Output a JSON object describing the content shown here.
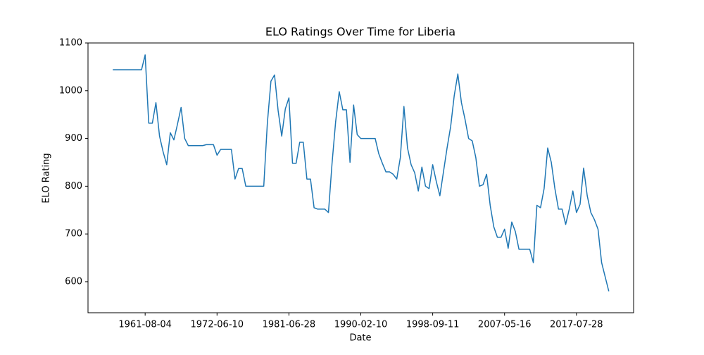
{
  "chart_data": {
    "type": "line",
    "title": "ELO Ratings Over Time for Liberia",
    "x_label": "Date",
    "y_label": "ELO Rating",
    "color": "#1f77b4",
    "categories": [
      null,
      null,
      null,
      null,
      null,
      null,
      null,
      null,
      null,
      "1961-08-04",
      null,
      null,
      null,
      null,
      null,
      null,
      null,
      null,
      null,
      null,
      null,
      null,
      null,
      null,
      null,
      null,
      null,
      null,
      null,
      "1972-06-10",
      null,
      null,
      null,
      null,
      null,
      null,
      null,
      null,
      null,
      null,
      null,
      null,
      null,
      null,
      null,
      null,
      null,
      null,
      null,
      "1981-06-28",
      null,
      null,
      null,
      null,
      null,
      null,
      null,
      null,
      null,
      null,
      null,
      null,
      null,
      null,
      null,
      null,
      null,
      null,
      null,
      "1990-02-10",
      null,
      null,
      null,
      null,
      null,
      null,
      null,
      null,
      null,
      null,
      null,
      null,
      null,
      null,
      null,
      null,
      null,
      null,
      null,
      "1998-09-11",
      null,
      null,
      null,
      null,
      null,
      null,
      null,
      null,
      null,
      null,
      null,
      null,
      null,
      null,
      null,
      null,
      null,
      null,
      null,
      "2007-05-16",
      null,
      null,
      null,
      null,
      null,
      null,
      null,
      null,
      null,
      null,
      null,
      null,
      null,
      null,
      null,
      null,
      null,
      null,
      null,
      "2017-07-28",
      null,
      null,
      null,
      null,
      null,
      null,
      null,
      null,
      null
    ],
    "values": [
      1044,
      1044,
      1044,
      1044,
      1044,
      1044,
      1044,
      1044,
      1044,
      1075,
      932,
      932,
      975,
      905,
      872,
      845,
      912,
      897,
      930,
      965,
      900,
      885,
      885,
      885,
      885,
      885,
      887,
      887,
      887,
      865,
      877,
      877,
      877,
      877,
      815,
      837,
      837,
      800,
      800,
      800,
      800,
      800,
      800,
      932,
      1020,
      1033,
      958,
      905,
      962,
      985,
      848,
      848,
      892,
      892,
      815,
      815,
      755,
      752,
      752,
      752,
      745,
      848,
      935,
      998,
      960,
      960,
      850,
      970,
      908,
      900,
      900,
      900,
      900,
      900,
      868,
      848,
      830,
      830,
      825,
      815,
      860,
      967,
      880,
      845,
      828,
      790,
      840,
      800,
      795,
      845,
      810,
      780,
      830,
      880,
      925,
      990,
      1035,
      975,
      940,
      900,
      895,
      860,
      800,
      803,
      825,
      760,
      715,
      693,
      693,
      710,
      670,
      725,
      705,
      668,
      668,
      668,
      668,
      640,
      760,
      755,
      795,
      880,
      850,
      795,
      752,
      752,
      720,
      752,
      790,
      745,
      762,
      838,
      780,
      745,
      730,
      710,
      640,
      610,
      580
    ],
    "ylim": [
      535,
      1100
    ],
    "yticks": [
      600,
      700,
      800,
      900,
      1000,
      1100
    ]
  }
}
